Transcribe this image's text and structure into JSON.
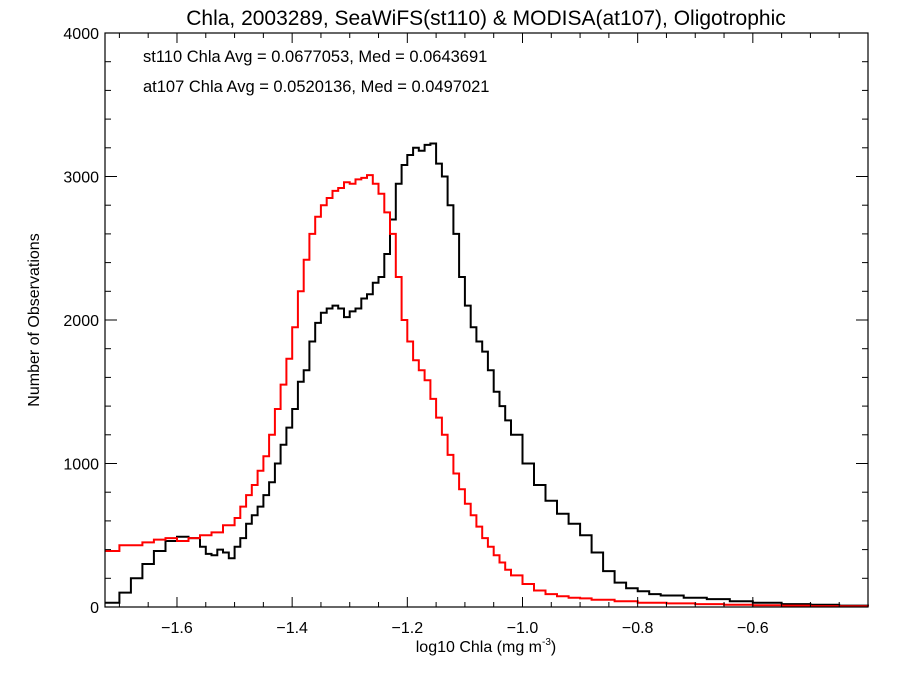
{
  "chart_data": {
    "type": "line",
    "title": "Chla, 2003289, SeaWiFS(st110) & MODISA(at107), Oligotrophic",
    "xlabel": "log10 Chla (mg m",
    "xlabel_sup": "-3",
    "xlabel_close": ")",
    "ylabel": "Number of Observations",
    "xlim": [
      -1.725,
      -0.4
    ],
    "ylim": [
      0,
      4000
    ],
    "x_ticks": [
      -1.6,
      -1.4,
      -1.2,
      -1.0,
      -0.8,
      -0.6
    ],
    "x_tick_labels": [
      "−1.6",
      "−1.4",
      "−1.2",
      "−1.0",
      "−0.8",
      "−0.6"
    ],
    "y_ticks": [
      0,
      1000,
      2000,
      3000,
      4000
    ],
    "y_tick_labels": [
      "0",
      "1000",
      "2000",
      "3000",
      "4000"
    ],
    "annotations": [
      {
        "text": "st110 Chla Avg = 0.0677053, Med = 0.0643691",
        "color": "#000000"
      },
      {
        "text": "at107 Chla Avg = 0.0520136, Med = 0.0497021",
        "color": "#ff0000"
      }
    ],
    "series": [
      {
        "color": "#000000",
        "x": [
          -1.725,
          -1.7,
          -1.68,
          -1.66,
          -1.64,
          -1.62,
          -1.6,
          -1.58,
          -1.56,
          -1.55,
          -1.54,
          -1.53,
          -1.52,
          -1.51,
          -1.5,
          -1.49,
          -1.48,
          -1.47,
          -1.46,
          -1.45,
          -1.44,
          -1.43,
          -1.42,
          -1.41,
          -1.4,
          -1.39,
          -1.38,
          -1.37,
          -1.36,
          -1.35,
          -1.34,
          -1.33,
          -1.32,
          -1.31,
          -1.3,
          -1.29,
          -1.28,
          -1.27,
          -1.26,
          -1.25,
          -1.24,
          -1.23,
          -1.22,
          -1.21,
          -1.2,
          -1.19,
          -1.18,
          -1.17,
          -1.16,
          -1.15,
          -1.14,
          -1.13,
          -1.12,
          -1.11,
          -1.1,
          -1.09,
          -1.08,
          -1.07,
          -1.06,
          -1.05,
          -1.04,
          -1.03,
          -1.02,
          -1.0,
          -0.98,
          -0.96,
          -0.94,
          -0.92,
          -0.9,
          -0.88,
          -0.86,
          -0.84,
          -0.82,
          -0.8,
          -0.78,
          -0.76,
          -0.72,
          -0.68,
          -0.64,
          -0.6,
          -0.55,
          -0.5,
          -0.45,
          -0.4
        ],
        "y": [
          30,
          100,
          200,
          300,
          390,
          460,
          490,
          480,
          420,
          370,
          360,
          400,
          380,
          340,
          420,
          480,
          580,
          640,
          700,
          780,
          870,
          1000,
          1130,
          1250,
          1380,
          1570,
          1650,
          1850,
          1980,
          2050,
          2080,
          2100,
          2080,
          2020,
          2060,
          2080,
          2150,
          2180,
          2260,
          2300,
          2460,
          2700,
          2950,
          3080,
          3150,
          3200,
          3180,
          3220,
          3230,
          3090,
          3000,
          2800,
          2600,
          2300,
          2100,
          1950,
          1850,
          1780,
          1650,
          1500,
          1400,
          1300,
          1200,
          1000,
          850,
          740,
          650,
          580,
          500,
          380,
          250,
          170,
          130,
          110,
          90,
          80,
          65,
          55,
          40,
          30,
          20,
          15,
          10,
          5
        ]
      },
      {
        "color": "#ff0000",
        "x": [
          -1.725,
          -1.7,
          -1.68,
          -1.66,
          -1.64,
          -1.62,
          -1.6,
          -1.58,
          -1.56,
          -1.54,
          -1.52,
          -1.5,
          -1.49,
          -1.48,
          -1.47,
          -1.46,
          -1.45,
          -1.44,
          -1.43,
          -1.42,
          -1.41,
          -1.4,
          -1.39,
          -1.38,
          -1.37,
          -1.36,
          -1.35,
          -1.34,
          -1.33,
          -1.32,
          -1.31,
          -1.3,
          -1.29,
          -1.28,
          -1.27,
          -1.26,
          -1.25,
          -1.24,
          -1.23,
          -1.22,
          -1.21,
          -1.2,
          -1.19,
          -1.18,
          -1.17,
          -1.16,
          -1.15,
          -1.14,
          -1.13,
          -1.12,
          -1.11,
          -1.1,
          -1.09,
          -1.08,
          -1.07,
          -1.06,
          -1.05,
          -1.04,
          -1.03,
          -1.02,
          -1.0,
          -0.98,
          -0.96,
          -0.94,
          -0.92,
          -0.9,
          -0.88,
          -0.84,
          -0.8,
          -0.75,
          -0.7,
          -0.65,
          -0.6,
          -0.55,
          -0.5,
          -0.45,
          -0.4
        ],
        "y": [
          390,
          430,
          430,
          450,
          470,
          480,
          460,
          480,
          500,
          520,
          570,
          620,
          700,
          780,
          850,
          950,
          1050,
          1200,
          1380,
          1550,
          1730,
          1950,
          2200,
          2420,
          2600,
          2720,
          2800,
          2850,
          2900,
          2920,
          2960,
          2950,
          2980,
          2990,
          3010,
          2950,
          2880,
          2750,
          2600,
          2300,
          2000,
          1850,
          1720,
          1650,
          1580,
          1450,
          1320,
          1200,
          1060,
          930,
          820,
          720,
          640,
          560,
          480,
          420,
          360,
          310,
          260,
          220,
          160,
          115,
          90,
          75,
          65,
          60,
          50,
          40,
          30,
          25,
          20,
          15,
          12,
          10,
          6,
          5,
          3
        ]
      }
    ]
  }
}
